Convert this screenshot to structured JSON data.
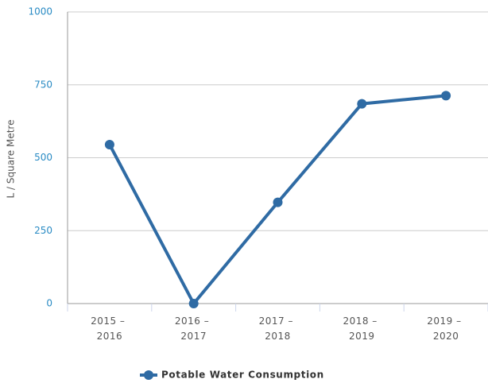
{
  "chart_data": {
    "type": "line",
    "y_label": "L / Square Metre",
    "categories": [
      "2015 – 2016",
      "2016 – 2017",
      "2017 – 2018",
      "2018 – 2019",
      "2019 – 2020"
    ],
    "series": [
      {
        "name": "Potable Water Consumption",
        "color": "#2f6ba4",
        "values": [
          545,
          0,
          347,
          685,
          713
        ]
      }
    ],
    "ylim": [
      0,
      1000
    ],
    "yticks": [
      0,
      250,
      500,
      750,
      1000
    ],
    "grid": true,
    "legend": "bottom"
  }
}
